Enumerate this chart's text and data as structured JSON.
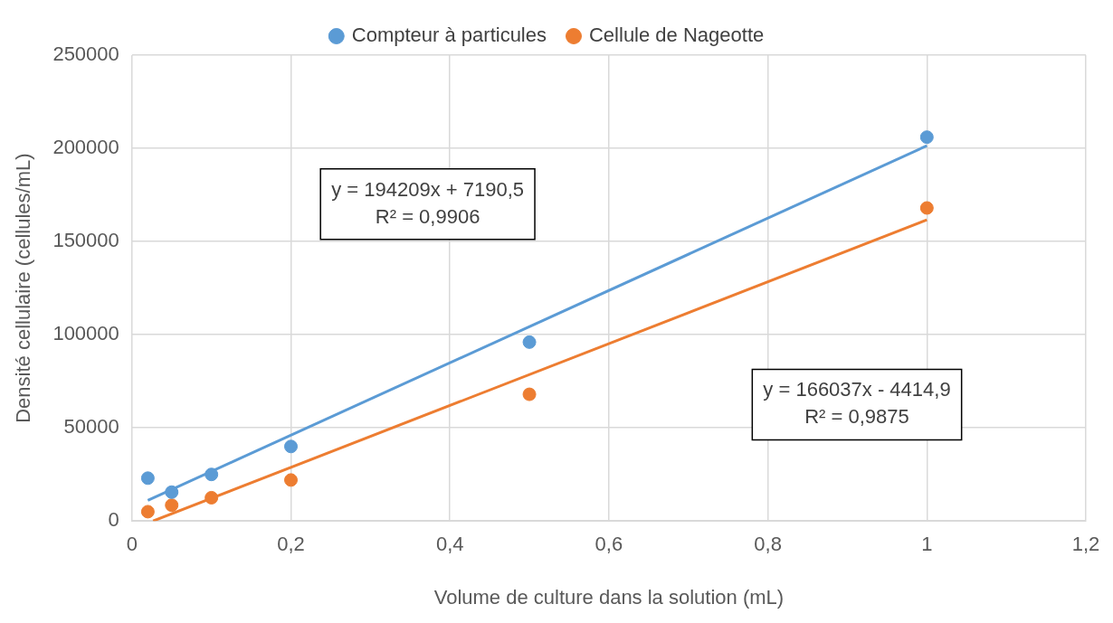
{
  "chart_data": {
    "type": "scatter",
    "xlabel": "Volume de culture dans la solution (mL)",
    "ylabel": "Densité cellulaire (cellules/mL)",
    "xlim": [
      0,
      1.2
    ],
    "xticks": [
      0,
      {
        "value": 0.2,
        "label": "0,2"
      },
      {
        "value": 0.4,
        "label": "0,4"
      },
      {
        "value": 0.6,
        "label": "0,6"
      },
      {
        "value": 0.8,
        "label": "0,8"
      },
      1,
      {
        "value": 1.2,
        "label": "1,2"
      }
    ],
    "ylim": [
      0,
      250000
    ],
    "yticks": [
      0,
      50000,
      100000,
      150000,
      200000,
      250000
    ],
    "grid": true,
    "legend": "top",
    "marker": "circle",
    "series": [
      {
        "name": "Compteur à particules",
        "color": "#5b9bd5",
        "x": [
          0.02,
          0.05,
          0.1,
          0.2,
          0.5,
          1
        ],
        "values": [
          23000,
          15500,
          25000,
          40000,
          96000,
          206000
        ]
      },
      {
        "name": "Cellule de Nageotte",
        "color": "#ed7d31",
        "x": [
          0.02,
          0.05,
          0.1,
          0.2,
          0.5,
          1
        ],
        "values": [
          5000,
          8500,
          12500,
          22000,
          68000,
          168000
        ]
      },
      {
        "type": "line",
        "color": "#5b9bd5",
        "x": [
          0.02,
          1
        ],
        "values": [
          11100,
          201400
        ],
        "marker": "none"
      },
      {
        "type": "line",
        "color": "#ed7d31",
        "x": [
          0.0266,
          1
        ],
        "values": [
          0,
          161600
        ],
        "marker": "none"
      }
    ],
    "annotations": [
      "y = 194209x + 7190,5\nR² = 0,9906",
      "y = 166037x - 4414,9\nR² = 0,9875"
    ]
  }
}
